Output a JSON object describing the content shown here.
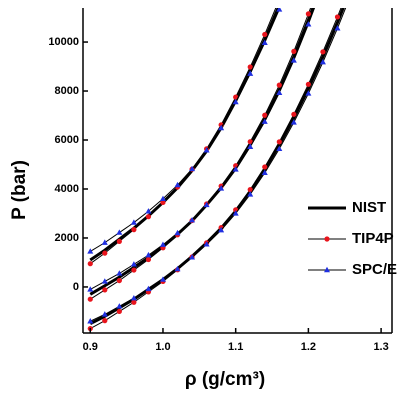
{
  "chart_data": {
    "type": "line",
    "x_label": "ρ (g/cm³)",
    "y_label": "P (bar)",
    "x": [
      0.9,
      0.92,
      0.94,
      0.96,
      0.98,
      1.0,
      1.02,
      1.04,
      1.06,
      1.08,
      1.1,
      1.12,
      1.14,
      1.16,
      1.18,
      1.2,
      1.22,
      1.24,
      1.26,
      1.28,
      1.3
    ],
    "series": [
      {
        "name": "NIST",
        "color": "#000000",
        "marker": "none",
        "width": 3,
        "values": [
          1100,
          1500,
          1950,
          2400,
          2900,
          3450,
          4050,
          4750,
          5550,
          6500,
          7600,
          8800,
          10100,
          11500,
          null,
          null,
          null,
          null,
          null,
          null,
          null
        ]
      },
      {
        "name": "TIP4P",
        "color": "#e8141c",
        "marker": "circle",
        "width": 1,
        "values": [
          950,
          1380,
          1860,
          2340,
          2870,
          3450,
          4080,
          4810,
          5640,
          6620,
          7750,
          8980,
          10310,
          11740,
          null,
          null,
          null,
          null,
          null,
          null,
          null
        ]
      },
      {
        "name": "SPC/E",
        "color": "#1f2fe0",
        "marker": "triangle",
        "width": 1,
        "values": [
          1450,
          1810,
          2220,
          2630,
          3090,
          3600,
          4160,
          4820,
          5580,
          6490,
          7550,
          8710,
          9970,
          11330,
          null,
          null,
          null,
          null,
          null,
          null,
          null
        ]
      },
      {
        "name": "NIST",
        "color": "#000000",
        "marker": "none",
        "width": 3,
        "values": [
          -300,
          50,
          400,
          800,
          1200,
          1650,
          2150,
          2700,
          3350,
          4050,
          4850,
          5800,
          6850,
          8050,
          9400,
          10900,
          12500,
          null,
          null,
          null,
          null
        ]
      },
      {
        "name": "TIP4P",
        "color": "#e8141c",
        "marker": "circle",
        "width": 1,
        "values": [
          -500,
          -120,
          260,
          690,
          1120,
          1600,
          2130,
          2710,
          3390,
          4120,
          4950,
          5930,
          7010,
          8240,
          9620,
          11150,
          12780,
          null,
          null,
          null,
          null
        ]
      },
      {
        "name": "SPC/E",
        "color": "#1f2fe0",
        "marker": "triangle",
        "width": 1,
        "values": [
          -100,
          225,
          550,
          925,
          1300,
          1725,
          2200,
          2725,
          3350,
          4025,
          4800,
          5725,
          6750,
          7925,
          9250,
          10725,
          12300,
          null,
          null,
          null,
          null
        ]
      },
      {
        "name": "NIST",
        "color": "#000000",
        "marker": "none",
        "width": 3,
        "values": [
          -1500,
          -1200,
          -850,
          -500,
          -100,
          300,
          750,
          1250,
          1800,
          2400,
          3100,
          3900,
          4800,
          5800,
          6900,
          8100,
          9400,
          10800,
          12300,
          null,
          null
        ]
      },
      {
        "name": "TIP4P",
        "color": "#e8141c",
        "marker": "circle",
        "width": 1,
        "values": [
          -1700,
          -1375,
          -1000,
          -625,
          -200,
          225,
          700,
          1225,
          1800,
          2425,
          3150,
          3975,
          4900,
          5925,
          7050,
          8275,
          9600,
          11025,
          12550,
          null,
          null
        ]
      },
      {
        "name": "SPC/E",
        "color": "#1f2fe0",
        "marker": "triangle",
        "width": 1,
        "values": [
          -1400,
          -1120,
          -790,
          -460,
          -80,
          300,
          730,
          1210,
          1740,
          2320,
          3000,
          3780,
          4660,
          5640,
          6720,
          7900,
          9180,
          10560,
          12040,
          null,
          null
        ]
      }
    ],
    "xlim": [
      0.89,
      1.315
    ],
    "ylim": [
      -1880,
      11390
    ],
    "xticks": [
      {
        "value": 0.9,
        "label": "0.9"
      },
      {
        "value": 1.0,
        "label": "1.0"
      },
      {
        "value": 1.1,
        "label": "1.1"
      },
      {
        "value": 1.2,
        "label": "1.2"
      },
      {
        "value": 1.3,
        "label": "1.3"
      }
    ],
    "yticks": [
      0,
      2000,
      4000,
      6000,
      8000,
      10000
    ],
    "legend": "right"
  }
}
